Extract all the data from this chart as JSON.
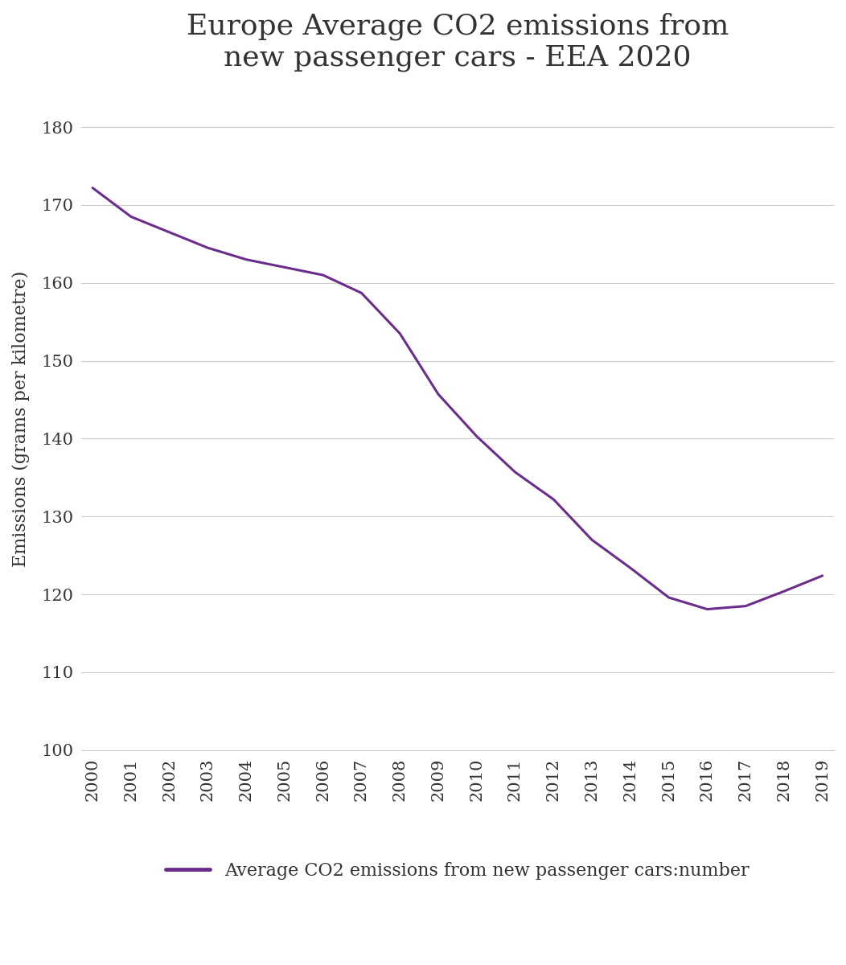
{
  "title": "Europe Average CO2 emissions from\nnew passenger cars - EEA 2020",
  "ylabel": "Emissions (grams per kilometre)",
  "legend_label": "Average CO2 emissions from new passenger cars:number",
  "years": [
    2000,
    2001,
    2002,
    2003,
    2004,
    2005,
    2006,
    2007,
    2008,
    2009,
    2010,
    2011,
    2012,
    2013,
    2014,
    2015,
    2016,
    2017,
    2018,
    2019
  ],
  "values": [
    172.2,
    168.5,
    166.5,
    164.5,
    163.0,
    162.0,
    161.0,
    158.7,
    153.5,
    145.7,
    140.3,
    135.7,
    132.2,
    127.0,
    123.4,
    119.6,
    118.1,
    118.5,
    120.4,
    122.4
  ],
  "line_color": "#6B2D8B",
  "line_width": 2.2,
  "background_color": "#ffffff",
  "title_fontsize": 26,
  "ylabel_fontsize": 16,
  "tick_fontsize": 15,
  "legend_fontsize": 16,
  "ylim": [
    100,
    185
  ],
  "yticks": [
    100,
    110,
    120,
    130,
    140,
    150,
    160,
    170,
    180
  ]
}
